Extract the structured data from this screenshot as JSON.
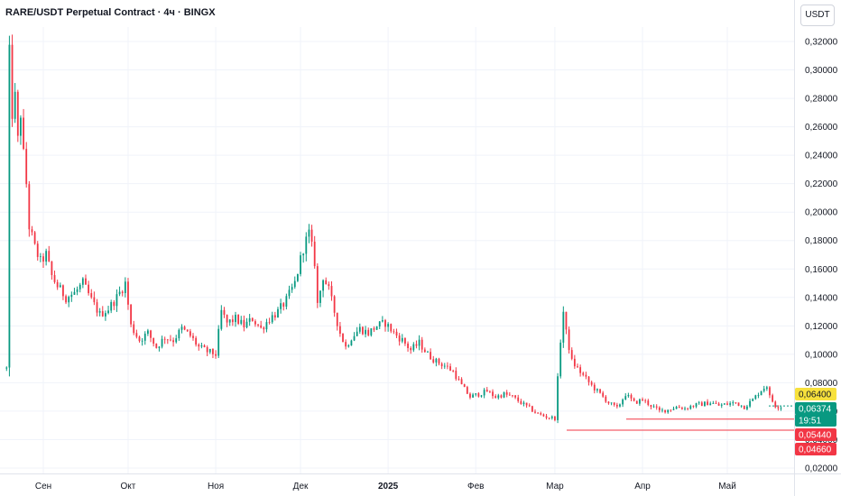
{
  "header": {
    "title": "RARE/USDT Perpetual Contract · 4ч · BINGX",
    "currency": "USDT"
  },
  "colors": {
    "up": "#089981",
    "down": "#f23645",
    "grid": "#f0f3fa",
    "hline": "#f23645",
    "price_badge": "#089981",
    "marker_yellow": "#f7e13c"
  },
  "chart_data": {
    "type": "candlestick",
    "title": "RARE/USDT Perpetual Contract · 4ч · BINGX",
    "xlabel": "",
    "ylabel": "",
    "ylim": [
      0.02,
      0.33
    ],
    "y_ticks": [
      "0,32000",
      "0,30000",
      "0,28000",
      "0,26000",
      "0,24000",
      "0,22000",
      "0,20000",
      "0,18000",
      "0,16000",
      "0,14000",
      "0,12000",
      "0,10000",
      "0,08000",
      "0,06000",
      "0,04000",
      "0,02000"
    ],
    "y_tick_values": [
      0.32,
      0.3,
      0.28,
      0.26,
      0.24,
      0.22,
      0.2,
      0.18,
      0.16,
      0.14,
      0.12,
      0.1,
      0.08,
      0.06,
      0.04,
      0.02
    ],
    "x_ticks": [
      {
        "label": "Сен",
        "date": "2024-09-01",
        "bold": false
      },
      {
        "label": "Окт",
        "date": "2024-10-01",
        "bold": false
      },
      {
        "label": "Ноя",
        "date": "2024-11-01",
        "bold": false
      },
      {
        "label": "Дек",
        "date": "2024-12-01",
        "bold": false
      },
      {
        "label": "2025",
        "date": "2025-01-01",
        "bold": true
      },
      {
        "label": "Фев",
        "date": "2025-02-01",
        "bold": false
      },
      {
        "label": "Мар",
        "date": "2025-03-01",
        "bold": false
      },
      {
        "label": "Апр",
        "date": "2025-04-01",
        "bold": false
      },
      {
        "label": "Май",
        "date": "2025-05-01",
        "bold": false
      }
    ],
    "series": [
      {
        "points": [
          [
            "2024-08-19",
            0.09
          ],
          [
            "2024-08-20",
            0.31
          ],
          [
            "2024-08-21",
            0.27
          ],
          [
            "2024-08-22",
            0.28
          ],
          [
            "2024-08-23",
            0.25
          ],
          [
            "2024-08-24",
            0.27
          ],
          [
            "2024-08-25",
            0.24
          ],
          [
            "2024-08-26",
            0.22
          ],
          [
            "2024-08-27",
            0.19
          ],
          [
            "2024-08-29",
            0.175
          ],
          [
            "2024-08-31",
            0.165
          ],
          [
            "2024-09-02",
            0.17
          ],
          [
            "2024-09-04",
            0.155
          ],
          [
            "2024-09-06",
            0.148
          ],
          [
            "2024-09-09",
            0.14
          ],
          [
            "2024-09-12",
            0.143
          ],
          [
            "2024-09-15",
            0.15
          ],
          [
            "2024-09-18",
            0.138
          ],
          [
            "2024-09-21",
            0.128
          ],
          [
            "2024-09-24",
            0.132
          ],
          [
            "2024-09-27",
            0.14
          ],
          [
            "2024-09-30",
            0.15
          ],
          [
            "2024-10-02",
            0.12
          ],
          [
            "2024-10-05",
            0.11
          ],
          [
            "2024-10-08",
            0.115
          ],
          [
            "2024-10-11",
            0.105
          ],
          [
            "2024-10-14",
            0.112
          ],
          [
            "2024-10-17",
            0.11
          ],
          [
            "2024-10-20",
            0.118
          ],
          [
            "2024-10-23",
            0.113
          ],
          [
            "2024-10-26",
            0.105
          ],
          [
            "2024-10-29",
            0.102
          ],
          [
            "2024-11-01",
            0.1
          ],
          [
            "2024-11-03",
            0.13
          ],
          [
            "2024-11-05",
            0.122
          ],
          [
            "2024-11-08",
            0.125
          ],
          [
            "2024-11-11",
            0.12
          ],
          [
            "2024-11-14",
            0.125
          ],
          [
            "2024-11-17",
            0.118
          ],
          [
            "2024-11-20",
            0.125
          ],
          [
            "2024-11-23",
            0.13
          ],
          [
            "2024-11-26",
            0.138
          ],
          [
            "2024-11-29",
            0.15
          ],
          [
            "2024-12-02",
            0.175
          ],
          [
            "2024-12-04",
            0.185
          ],
          [
            "2024-12-06",
            0.165
          ],
          [
            "2024-12-07",
            0.135
          ],
          [
            "2024-12-09",
            0.155
          ],
          [
            "2024-12-11",
            0.145
          ],
          [
            "2024-12-13",
            0.13
          ],
          [
            "2024-12-15",
            0.115
          ],
          [
            "2024-12-17",
            0.105
          ],
          [
            "2024-12-19",
            0.112
          ],
          [
            "2024-12-22",
            0.118
          ],
          [
            "2024-12-25",
            0.115
          ],
          [
            "2024-12-28",
            0.12
          ],
          [
            "2024-12-31",
            0.122
          ],
          [
            "2025-01-03",
            0.115
          ],
          [
            "2025-01-06",
            0.11
          ],
          [
            "2025-01-09",
            0.103
          ],
          [
            "2025-01-12",
            0.108
          ],
          [
            "2025-01-15",
            0.1
          ],
          [
            "2025-01-18",
            0.095
          ],
          [
            "2025-01-21",
            0.092
          ],
          [
            "2025-01-24",
            0.088
          ],
          [
            "2025-01-27",
            0.078
          ],
          [
            "2025-01-30",
            0.07
          ],
          [
            "2025-02-02",
            0.072
          ],
          [
            "2025-02-05",
            0.074
          ],
          [
            "2025-02-08",
            0.07
          ],
          [
            "2025-02-11",
            0.072
          ],
          [
            "2025-02-14",
            0.07
          ],
          [
            "2025-02-17",
            0.066
          ],
          [
            "2025-02-20",
            0.062
          ],
          [
            "2025-02-23",
            0.058
          ],
          [
            "2025-02-26",
            0.056
          ],
          [
            "2025-03-01",
            0.055
          ],
          [
            "2025-03-03",
            0.11
          ],
          [
            "2025-03-04",
            0.13
          ],
          [
            "2025-03-05",
            0.115
          ],
          [
            "2025-03-07",
            0.095
          ],
          [
            "2025-03-09",
            0.09
          ],
          [
            "2025-03-11",
            0.085
          ],
          [
            "2025-03-14",
            0.078
          ],
          [
            "2025-03-17",
            0.072
          ],
          [
            "2025-03-20",
            0.066
          ],
          [
            "2025-03-23",
            0.062
          ],
          [
            "2025-03-26",
            0.072
          ],
          [
            "2025-03-29",
            0.066
          ],
          [
            "2025-04-01",
            0.068
          ],
          [
            "2025-04-04",
            0.064
          ],
          [
            "2025-04-07",
            0.06
          ],
          [
            "2025-04-10",
            0.061
          ],
          [
            "2025-04-13",
            0.063
          ],
          [
            "2025-04-16",
            0.062
          ],
          [
            "2025-04-19",
            0.064
          ],
          [
            "2025-04-22",
            0.065
          ],
          [
            "2025-04-25",
            0.066
          ],
          [
            "2025-04-28",
            0.064
          ],
          [
            "2025-05-01",
            0.065
          ],
          [
            "2025-05-04",
            0.066
          ],
          [
            "2025-05-07",
            0.063
          ],
          [
            "2025-05-10",
            0.068
          ],
          [
            "2025-05-13",
            0.075
          ],
          [
            "2025-05-15",
            0.078
          ],
          [
            "2025-05-16",
            0.07
          ],
          [
            "2025-05-18",
            0.064
          ],
          [
            "2025-05-20",
            0.063
          ]
        ]
      }
    ],
    "horizontal_lines": [
      0.0544,
      0.0466
    ],
    "price_badges": [
      {
        "label": "0,06400",
        "value": 0.064,
        "bg": "#f7e13c",
        "fg": "#131722"
      },
      {
        "label": "0,06374",
        "value": 0.06374,
        "bg": "#089981",
        "fg": "#ffffff"
      },
      {
        "label": "19:51",
        "value": 0.0587,
        "bg": "#089981",
        "fg": "#ffffff"
      },
      {
        "label": "0,05440",
        "value": 0.0544,
        "bg": "#f23645",
        "fg": "#ffffff"
      },
      {
        "label": "0,04660",
        "value": 0.0466,
        "bg": "#f23645",
        "fg": "#ffffff"
      }
    ],
    "x_range": [
      "2024-08-19",
      "2025-05-28"
    ],
    "grid": true,
    "legend": "none"
  }
}
